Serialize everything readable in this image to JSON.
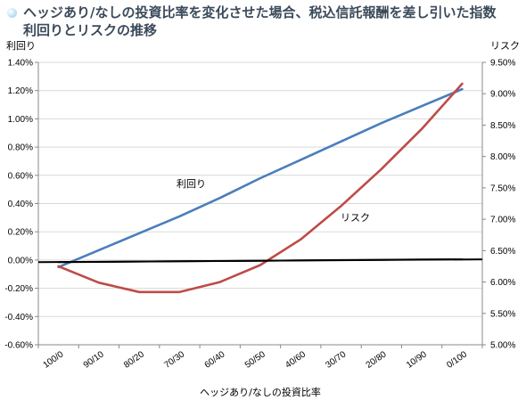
{
  "title": {
    "line1": "ヘッジあり/なしの投資比率を変化させた場合、税込信託報酬を差し引いた指数",
    "line2": "利回りとリスクの推移"
  },
  "chart_data": {
    "type": "line",
    "title": "ヘッジあり/なしの投資比率を変化させた場合、税込信託報酬を差し引いた指数利回りとリスクの推移",
    "xlabel": "ヘッジあり/なしの投資比率",
    "ylabel_left": "利回り",
    "ylabel_right": "リスク",
    "categories": [
      "100/0",
      "90/10",
      "80/20",
      "70/30",
      "60/40",
      "50/50",
      "40/60",
      "30/70",
      "20/80",
      "10/90",
      "0/100"
    ],
    "y_left": {
      "min": -0.6,
      "max": 1.4,
      "step": 0.2,
      "ticks": [
        "1.40%",
        "1.20%",
        "1.00%",
        "0.80%",
        "0.60%",
        "0.40%",
        "0.20%",
        "0.00%",
        "-0.20%",
        "-0.40%",
        "-0.60%"
      ]
    },
    "y_right": {
      "min": 5.0,
      "max": 9.5,
      "step": 0.5,
      "ticks": [
        "9.50%",
        "9.00%",
        "8.50%",
        "8.00%",
        "7.50%",
        "7.00%",
        "6.50%",
        "6.00%",
        "5.50%",
        "5.00%"
      ]
    },
    "series": [
      {
        "name": "利回り",
        "axis": "left",
        "color": "#4a7ebb",
        "values": [
          -0.05,
          0.07,
          0.19,
          0.31,
          0.44,
          0.58,
          0.71,
          0.84,
          0.97,
          1.09,
          1.21
        ]
      },
      {
        "name": "リスク",
        "axis": "right",
        "color": "#be4b48",
        "values": [
          6.25,
          5.99,
          5.84,
          5.84,
          6.0,
          6.27,
          6.68,
          7.21,
          7.8,
          8.44,
          9.16
        ]
      },
      {
        "axis": "left",
        "color": "#000000",
        "values": [
          -0.015,
          -0.013,
          -0.011,
          -0.009,
          -0.007,
          -0.005,
          -0.002,
          0.0,
          0.002,
          0.004,
          0.005
        ]
      }
    ],
    "annotations": [
      {
        "text": "利回り",
        "series": "利回り"
      },
      {
        "text": "リスク",
        "series": "リスク"
      }
    ],
    "grid": true,
    "legend": "none"
  }
}
